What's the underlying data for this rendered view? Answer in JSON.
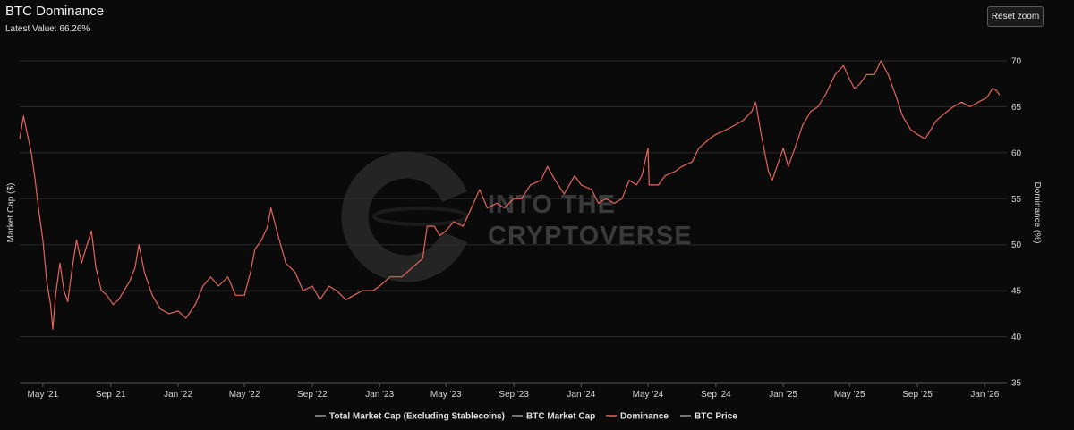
{
  "header": {
    "title": "BTC Dominance",
    "subtitle": "Latest Value: 66.26%",
    "reset_label": "Reset zoom"
  },
  "watermark": {
    "line1": "INTO THE",
    "line2": "CRYPTOVERSE"
  },
  "colors": {
    "dominance": "#e4655b",
    "grid": "#2b2b2b",
    "background": "#0b0a0b",
    "legend_inactive": "#9a9a9a"
  },
  "legend": [
    {
      "label": "Total Market Cap (Excluding Stablecoins)",
      "color": "#9a9a9a"
    },
    {
      "label": "BTC Market Cap",
      "color": "#9a9a9a"
    },
    {
      "label": "Dominance",
      "color": "#e4655b"
    },
    {
      "label": "BTC Price",
      "color": "#9a9a9a"
    }
  ],
  "chart_data": {
    "type": "line",
    "title": "BTC Dominance",
    "y_left_label": "Market Cap ($)",
    "y_right_label": "Dominance (%)",
    "y_right_ticks": [
      "35",
      "40",
      "45",
      "50",
      "55",
      "60",
      "65",
      "70"
    ],
    "ylim": [
      35,
      72
    ],
    "x_tick_labels": [
      "May '21",
      "Sep '21",
      "Jan '22",
      "May '22",
      "Sep '22",
      "Jan '23",
      "May '23",
      "Sep '23",
      "Jan '24",
      "May '24",
      "Sep '24",
      "Jan '25",
      "May '25",
      "Sep '25",
      "Jan '26"
    ],
    "x_tick_dates": [
      "2021-05-01",
      "2021-09-01",
      "2022-01-01",
      "2022-05-01",
      "2022-09-01",
      "2023-01-01",
      "2023-05-01",
      "2023-09-01",
      "2024-01-01",
      "2024-05-01",
      "2024-09-01",
      "2025-01-01",
      "2025-05-01",
      "2025-09-01",
      "2026-01-01"
    ],
    "x_range": [
      "2021-03-20",
      "2026-02-10"
    ],
    "grid": true,
    "legend_position": "bottom",
    "series": [
      {
        "name": "Dominance",
        "color": "#e4655b",
        "points": [
          [
            "2021-03-20",
            61.5
          ],
          [
            "2021-03-27",
            64.0
          ],
          [
            "2021-04-03",
            62.0
          ],
          [
            "2021-04-10",
            60.0
          ],
          [
            "2021-04-17",
            57.0
          ],
          [
            "2021-04-24",
            53.5
          ],
          [
            "2021-05-01",
            50.5
          ],
          [
            "2021-05-08",
            46.0
          ],
          [
            "2021-05-15",
            43.5
          ],
          [
            "2021-05-19",
            40.8
          ],
          [
            "2021-05-24",
            44.5
          ],
          [
            "2021-06-01",
            48.0
          ],
          [
            "2021-06-08",
            45.0
          ],
          [
            "2021-06-15",
            43.8
          ],
          [
            "2021-06-22",
            47.0
          ],
          [
            "2021-07-01",
            50.5
          ],
          [
            "2021-07-10",
            48.0
          ],
          [
            "2021-07-20",
            50.0
          ],
          [
            "2021-07-28",
            51.5
          ],
          [
            "2021-08-05",
            47.5
          ],
          [
            "2021-08-15",
            45.0
          ],
          [
            "2021-08-25",
            44.5
          ],
          [
            "2021-09-05",
            43.5
          ],
          [
            "2021-09-15",
            44.0
          ],
          [
            "2021-09-25",
            45.0
          ],
          [
            "2021-10-05",
            46.0
          ],
          [
            "2021-10-15",
            47.5
          ],
          [
            "2021-10-22",
            50.0
          ],
          [
            "2021-11-01",
            47.0
          ],
          [
            "2021-11-15",
            44.5
          ],
          [
            "2021-11-30",
            43.0
          ],
          [
            "2021-12-15",
            42.5
          ],
          [
            "2022-01-01",
            42.8
          ],
          [
            "2022-01-15",
            42.0
          ],
          [
            "2022-02-01",
            43.5
          ],
          [
            "2022-02-15",
            45.5
          ],
          [
            "2022-03-01",
            46.5
          ],
          [
            "2022-03-15",
            45.5
          ],
          [
            "2022-04-01",
            46.5
          ],
          [
            "2022-04-15",
            44.5
          ],
          [
            "2022-05-01",
            44.5
          ],
          [
            "2022-05-12",
            47.0
          ],
          [
            "2022-05-20",
            49.5
          ],
          [
            "2022-06-01",
            50.5
          ],
          [
            "2022-06-12",
            52.0
          ],
          [
            "2022-06-18",
            54.0
          ],
          [
            "2022-07-01",
            51.0
          ],
          [
            "2022-07-15",
            48.0
          ],
          [
            "2022-08-01",
            47.0
          ],
          [
            "2022-08-15",
            45.0
          ],
          [
            "2022-09-01",
            45.5
          ],
          [
            "2022-09-15",
            44.0
          ],
          [
            "2022-10-01",
            45.5
          ],
          [
            "2022-10-15",
            45.0
          ],
          [
            "2022-11-01",
            44.0
          ],
          [
            "2022-11-15",
            44.5
          ],
          [
            "2022-12-01",
            45.0
          ],
          [
            "2022-12-20",
            45.0
          ],
          [
            "2023-01-01",
            45.5
          ],
          [
            "2023-01-20",
            46.5
          ],
          [
            "2023-02-10",
            46.5
          ],
          [
            "2023-03-01",
            47.5
          ],
          [
            "2023-03-20",
            48.5
          ],
          [
            "2023-03-28",
            52.0
          ],
          [
            "2023-04-10",
            52.0
          ],
          [
            "2023-04-20",
            51.0
          ],
          [
            "2023-05-01",
            51.5
          ],
          [
            "2023-05-15",
            52.5
          ],
          [
            "2023-06-01",
            52.0
          ],
          [
            "2023-06-20",
            54.5
          ],
          [
            "2023-07-01",
            56.0
          ],
          [
            "2023-07-15",
            54.0
          ],
          [
            "2023-08-01",
            54.5
          ],
          [
            "2023-08-15",
            54.0
          ],
          [
            "2023-09-01",
            55.0
          ],
          [
            "2023-09-15",
            55.0
          ],
          [
            "2023-10-01",
            56.5
          ],
          [
            "2023-10-20",
            57.0
          ],
          [
            "2023-11-01",
            58.5
          ],
          [
            "2023-11-15",
            57.0
          ],
          [
            "2023-12-01",
            55.5
          ],
          [
            "2023-12-20",
            57.5
          ],
          [
            "2024-01-01",
            56.5
          ],
          [
            "2024-01-20",
            56.0
          ],
          [
            "2024-02-01",
            54.5
          ],
          [
            "2024-02-15",
            55.0
          ],
          [
            "2024-03-01",
            54.5
          ],
          [
            "2024-03-15",
            55.0
          ],
          [
            "2024-03-28",
            57.0
          ],
          [
            "2024-04-10",
            56.5
          ],
          [
            "2024-04-20",
            57.5
          ],
          [
            "2024-05-01",
            60.5
          ],
          [
            "2024-05-03",
            56.5
          ],
          [
            "2024-05-20",
            56.5
          ],
          [
            "2024-06-01",
            57.5
          ],
          [
            "2024-06-20",
            58.0
          ],
          [
            "2024-07-01",
            58.5
          ],
          [
            "2024-07-20",
            59.0
          ],
          [
            "2024-08-01",
            60.5
          ],
          [
            "2024-08-20",
            61.5
          ],
          [
            "2024-09-01",
            62.0
          ],
          [
            "2024-09-20",
            62.5
          ],
          [
            "2024-10-05",
            63.0
          ],
          [
            "2024-10-20",
            63.5
          ],
          [
            "2024-11-05",
            64.5
          ],
          [
            "2024-11-12",
            65.5
          ],
          [
            "2024-11-22",
            62.0
          ],
          [
            "2024-12-05",
            58.0
          ],
          [
            "2024-12-12",
            57.0
          ],
          [
            "2025-01-01",
            60.5
          ],
          [
            "2025-01-10",
            58.5
          ],
          [
            "2025-01-25",
            61.0
          ],
          [
            "2025-02-05",
            63.0
          ],
          [
            "2025-02-20",
            64.5
          ],
          [
            "2025-03-05",
            65.0
          ],
          [
            "2025-03-20",
            66.5
          ],
          [
            "2025-04-05",
            68.5
          ],
          [
            "2025-04-20",
            69.5
          ],
          [
            "2025-05-01",
            68.0
          ],
          [
            "2025-05-10",
            67.0
          ],
          [
            "2025-05-20",
            67.5
          ],
          [
            "2025-06-01",
            68.5
          ],
          [
            "2025-06-15",
            68.5
          ],
          [
            "2025-06-27",
            70.0
          ],
          [
            "2025-07-10",
            68.5
          ],
          [
            "2025-07-25",
            66.0
          ],
          [
            "2025-08-05",
            64.0
          ],
          [
            "2025-08-20",
            62.5
          ],
          [
            "2025-09-01",
            62.0
          ],
          [
            "2025-09-15",
            61.5
          ],
          [
            "2025-09-25",
            62.5
          ],
          [
            "2025-10-05",
            63.5
          ],
          [
            "2025-10-15",
            64.0
          ],
          [
            "2025-10-25",
            64.5
          ],
          [
            "2025-11-05",
            65.0
          ],
          [
            "2025-11-20",
            65.5
          ],
          [
            "2025-12-05",
            65.0
          ],
          [
            "2025-12-20",
            65.5
          ],
          [
            "2026-01-05",
            66.0
          ],
          [
            "2026-01-15",
            67.0
          ],
          [
            "2026-01-22",
            66.8
          ],
          [
            "2026-01-28",
            66.26
          ]
        ]
      }
    ]
  }
}
